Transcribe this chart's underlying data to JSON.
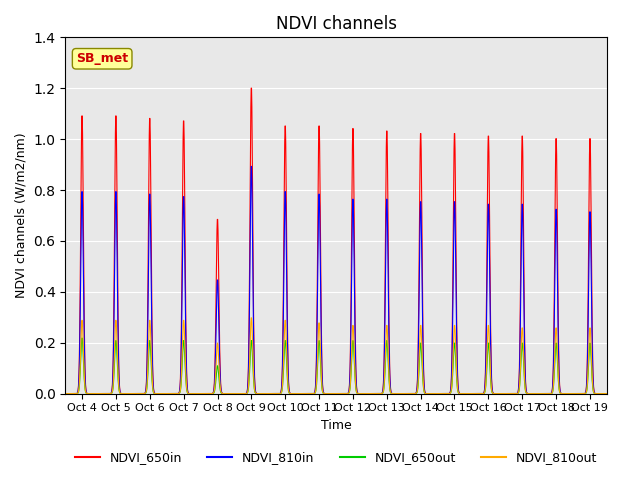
{
  "title": "NDVI channels",
  "xlabel": "Time",
  "ylabel": "NDVI channels (W/m2/nm)",
  "ylim": [
    0,
    1.4
  ],
  "annotation_text": "SB_met",
  "annotation_color": "#cc0000",
  "annotation_bg": "#ffff99",
  "bg_color": "#e8e8e8",
  "legend_entries": [
    "NDVI_650in",
    "NDVI_810in",
    "NDVI_650out",
    "NDVI_810out"
  ],
  "line_colors": [
    "#ff0000",
    "#0000ff",
    "#00cc00",
    "#ffaa00"
  ],
  "x_tick_labels": [
    "Oct 4",
    "Oct 5",
    "Oct 6",
    "Oct 7",
    "Oct 8",
    "Oct 9",
    "Oct 10",
    "Oct 11",
    "Oct 12",
    "Oct 13",
    "Oct 14",
    "Oct 15",
    "Oct 16",
    "Oct 17",
    "Oct 18",
    "Oct 19"
  ],
  "peaks_650in": [
    1.1,
    1.1,
    1.09,
    1.08,
    0.69,
    1.21,
    1.06,
    1.06,
    1.05,
    1.04,
    1.03,
    1.03,
    1.02,
    1.02,
    1.01,
    1.01
  ],
  "peaks_810in": [
    0.8,
    0.8,
    0.79,
    0.78,
    0.45,
    0.9,
    0.8,
    0.79,
    0.77,
    0.77,
    0.76,
    0.76,
    0.75,
    0.75,
    0.73,
    0.72
  ],
  "peaks_650out": [
    0.22,
    0.21,
    0.21,
    0.21,
    0.11,
    0.21,
    0.21,
    0.21,
    0.21,
    0.21,
    0.2,
    0.2,
    0.2,
    0.2,
    0.2,
    0.2
  ],
  "peaks_810out": [
    0.29,
    0.29,
    0.29,
    0.29,
    0.2,
    0.3,
    0.29,
    0.28,
    0.27,
    0.27,
    0.27,
    0.27,
    0.27,
    0.26,
    0.26,
    0.26
  ],
  "num_periods": 16,
  "points_per_period": 100,
  "pulse_sigma": 0.04
}
